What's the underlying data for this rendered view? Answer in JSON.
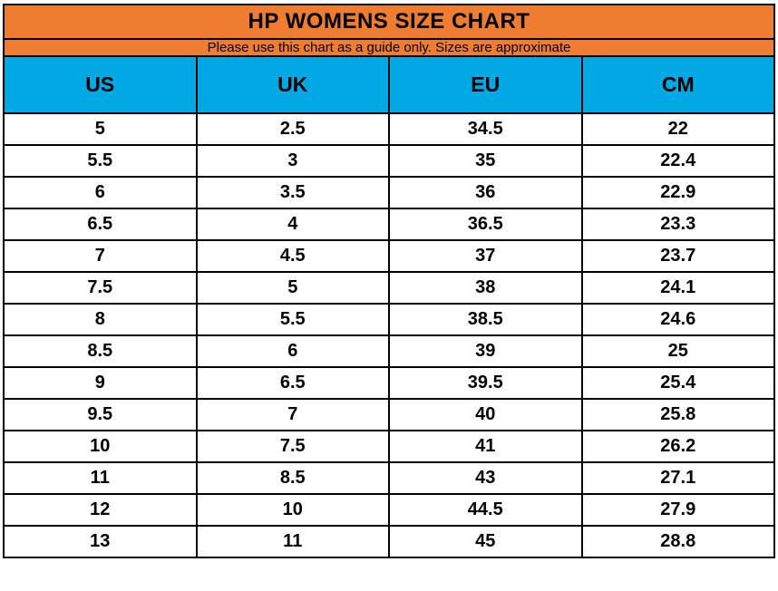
{
  "title": "HP WOMENS SIZE CHART",
  "subtitle": "Please use this chart as a guide only. Sizes are approximate",
  "colors": {
    "header_orange": "#EE7D31",
    "header_blue": "#00A9E4",
    "border": "#000000",
    "text": "#000000",
    "row_background": "#FFFFFF"
  },
  "chart_data": {
    "type": "table",
    "title": "HP WOMENS SIZE CHART",
    "subtitle": "Please use this chart as a guide only. Sizes are approximate",
    "columns": [
      "US",
      "UK",
      "EU",
      "CM"
    ],
    "rows": [
      [
        "5",
        "2.5",
        "34.5",
        "22"
      ],
      [
        "5.5",
        "3",
        "35",
        "22.4"
      ],
      [
        "6",
        "3.5",
        "36",
        "22.9"
      ],
      [
        "6.5",
        "4",
        "36.5",
        "23.3"
      ],
      [
        "7",
        "4.5",
        "37",
        "23.7"
      ],
      [
        "7.5",
        "5",
        "38",
        "24.1"
      ],
      [
        "8",
        "5.5",
        "38.5",
        "24.6"
      ],
      [
        "8.5",
        "6",
        "39",
        "25"
      ],
      [
        "9",
        "6.5",
        "39.5",
        "25.4"
      ],
      [
        "9.5",
        "7",
        "40",
        "25.8"
      ],
      [
        "10",
        "7.5",
        "41",
        "26.2"
      ],
      [
        "11",
        "8.5",
        "43",
        "27.1"
      ],
      [
        "12",
        "10",
        "44.5",
        "27.9"
      ],
      [
        "13",
        "11",
        "45",
        "28.8"
      ]
    ]
  }
}
